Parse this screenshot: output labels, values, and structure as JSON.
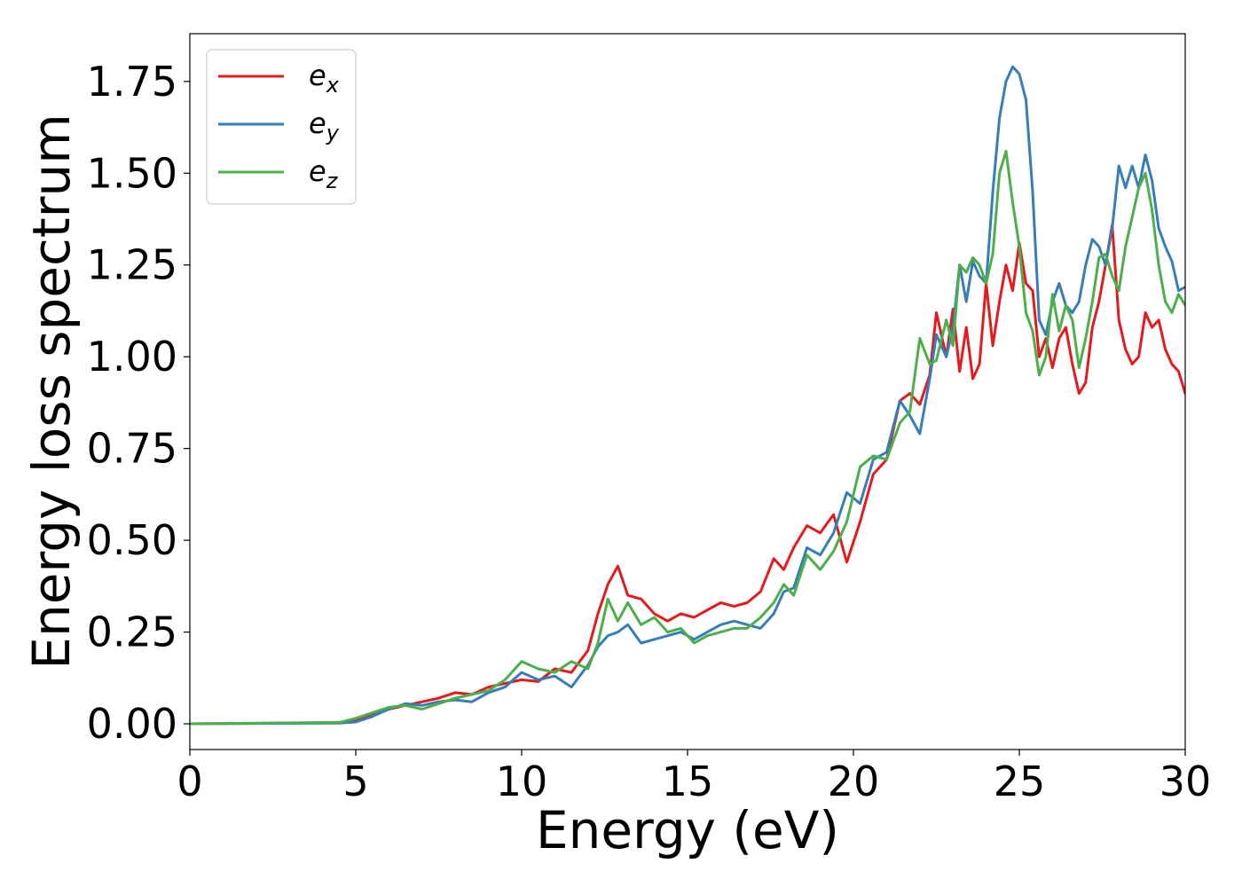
{
  "chart_data": {
    "type": "line",
    "title": "",
    "xlabel": "Energy (eV)",
    "ylabel": "Energy loss spectrum",
    "xlim": [
      0,
      30
    ],
    "ylim": [
      -0.07,
      1.88
    ],
    "xticks": [
      0,
      5,
      10,
      15,
      20,
      25,
      30
    ],
    "xtick_labels": [
      "0",
      "5",
      "10",
      "15",
      "20",
      "25",
      "30"
    ],
    "yticks": [
      0.0,
      0.25,
      0.5,
      0.75,
      1.0,
      1.25,
      1.5,
      1.75
    ],
    "ytick_labels": [
      "0.00",
      "0.25",
      "0.50",
      "0.75",
      "1.00",
      "1.25",
      "1.50",
      "1.75"
    ],
    "grid": false,
    "legend_position": "top-left",
    "series": [
      {
        "name": "e_x",
        "label_base": "e",
        "label_sub": "x",
        "color": "#e41a1c",
        "x": [
          0,
          4.5,
          5,
          5.5,
          6,
          6.5,
          7,
          7.5,
          8,
          8.5,
          9,
          9.5,
          10,
          10.5,
          11,
          11.5,
          12,
          12.3,
          12.6,
          12.9,
          13.2,
          13.6,
          14,
          14.4,
          14.8,
          15.2,
          15.6,
          16,
          16.4,
          16.8,
          17.2,
          17.6,
          17.9,
          18.2,
          18.6,
          19,
          19.4,
          19.8,
          20.2,
          20.6,
          21,
          21.4,
          21.7,
          22,
          22.3,
          22.5,
          22.8,
          23,
          23.2,
          23.4,
          23.6,
          23.8,
          24,
          24.2,
          24.4,
          24.6,
          24.8,
          25,
          25.2,
          25.4,
          25.6,
          25.8,
          26,
          26.2,
          26.4,
          26.6,
          26.8,
          27,
          27.2,
          27.4,
          27.6,
          27.8,
          28,
          28.2,
          28.4,
          28.6,
          28.8,
          29,
          29.2,
          29.4,
          29.6,
          29.8,
          30
        ],
        "y": [
          0,
          0.003,
          0.01,
          0.025,
          0.04,
          0.05,
          0.06,
          0.07,
          0.085,
          0.08,
          0.1,
          0.11,
          0.12,
          0.115,
          0.15,
          0.14,
          0.2,
          0.3,
          0.38,
          0.43,
          0.35,
          0.34,
          0.3,
          0.28,
          0.3,
          0.29,
          0.31,
          0.33,
          0.32,
          0.33,
          0.36,
          0.45,
          0.42,
          0.48,
          0.54,
          0.52,
          0.57,
          0.44,
          0.55,
          0.68,
          0.72,
          0.88,
          0.9,
          0.87,
          0.95,
          1.12,
          1.0,
          1.13,
          0.96,
          1.08,
          0.94,
          0.98,
          1.2,
          1.03,
          1.15,
          1.25,
          1.18,
          1.31,
          1.2,
          1.18,
          1.0,
          1.05,
          0.97,
          1.05,
          1.08,
          0.98,
          0.9,
          0.93,
          1.08,
          1.15,
          1.25,
          1.36,
          1.1,
          1.02,
          0.98,
          1.0,
          1.12,
          1.08,
          1.1,
          1.02,
          0.98,
          0.96,
          0.9
        ]
      },
      {
        "name": "e_y",
        "label_base": "e",
        "label_sub": "y",
        "color": "#377eb8",
        "x": [
          0,
          4.5,
          5,
          5.5,
          6,
          6.5,
          7,
          7.5,
          8,
          8.5,
          9,
          9.5,
          10,
          10.5,
          11,
          11.5,
          12,
          12.3,
          12.6,
          12.9,
          13.2,
          13.6,
          14,
          14.4,
          14.8,
          15.2,
          15.6,
          16,
          16.4,
          16.8,
          17.2,
          17.6,
          17.9,
          18.2,
          18.6,
          19,
          19.4,
          19.8,
          20.2,
          20.6,
          21,
          21.4,
          21.7,
          22,
          22.3,
          22.5,
          22.8,
          23,
          23.2,
          23.4,
          23.6,
          23.8,
          24,
          24.2,
          24.4,
          24.6,
          24.8,
          25,
          25.2,
          25.4,
          25.6,
          25.8,
          26,
          26.2,
          26.4,
          26.6,
          26.8,
          27,
          27.2,
          27.4,
          27.6,
          27.8,
          28,
          28.2,
          28.4,
          28.6,
          28.8,
          29,
          29.2,
          29.4,
          29.6,
          29.8,
          30
        ],
        "y": [
          0,
          0.002,
          0.005,
          0.02,
          0.04,
          0.055,
          0.05,
          0.06,
          0.065,
          0.06,
          0.085,
          0.1,
          0.14,
          0.12,
          0.13,
          0.1,
          0.16,
          0.21,
          0.24,
          0.25,
          0.27,
          0.22,
          0.23,
          0.24,
          0.25,
          0.23,
          0.25,
          0.27,
          0.28,
          0.27,
          0.26,
          0.3,
          0.36,
          0.37,
          0.48,
          0.46,
          0.52,
          0.63,
          0.6,
          0.72,
          0.74,
          0.88,
          0.84,
          0.79,
          0.94,
          1.06,
          1.0,
          1.08,
          1.25,
          1.15,
          1.26,
          1.22,
          1.2,
          1.45,
          1.65,
          1.75,
          1.79,
          1.77,
          1.7,
          1.45,
          1.1,
          1.06,
          1.15,
          1.2,
          1.14,
          1.12,
          1.15,
          1.25,
          1.32,
          1.3,
          1.25,
          1.35,
          1.52,
          1.46,
          1.52,
          1.46,
          1.55,
          1.48,
          1.35,
          1.3,
          1.26,
          1.18,
          1.19
        ]
      },
      {
        "name": "e_z",
        "label_base": "e",
        "label_sub": "z",
        "color": "#4daf4a",
        "x": [
          0,
          4.5,
          5,
          5.5,
          6,
          6.5,
          7,
          7.5,
          8,
          8.5,
          9,
          9.5,
          10,
          10.5,
          11,
          11.5,
          12,
          12.3,
          12.6,
          12.9,
          13.2,
          13.6,
          14,
          14.4,
          14.8,
          15.2,
          15.6,
          16,
          16.4,
          16.8,
          17.2,
          17.6,
          17.9,
          18.2,
          18.6,
          19,
          19.4,
          19.8,
          20.2,
          20.6,
          21,
          21.4,
          21.7,
          22,
          22.3,
          22.5,
          22.8,
          23,
          23.2,
          23.4,
          23.6,
          23.8,
          24,
          24.2,
          24.4,
          24.6,
          24.8,
          25,
          25.2,
          25.4,
          25.6,
          25.8,
          26,
          26.2,
          26.4,
          26.6,
          26.8,
          27,
          27.2,
          27.4,
          27.6,
          27.8,
          28,
          28.2,
          28.4,
          28.6,
          28.8,
          29,
          29.2,
          29.4,
          29.6,
          29.8,
          30
        ],
        "y": [
          0,
          0.004,
          0.015,
          0.03,
          0.045,
          0.05,
          0.04,
          0.055,
          0.07,
          0.08,
          0.09,
          0.12,
          0.17,
          0.15,
          0.14,
          0.17,
          0.15,
          0.22,
          0.34,
          0.28,
          0.33,
          0.27,
          0.29,
          0.25,
          0.26,
          0.22,
          0.24,
          0.25,
          0.26,
          0.26,
          0.29,
          0.33,
          0.38,
          0.35,
          0.46,
          0.42,
          0.47,
          0.55,
          0.7,
          0.73,
          0.72,
          0.82,
          0.85,
          1.05,
          0.98,
          0.99,
          1.1,
          1.03,
          1.25,
          1.23,
          1.27,
          1.25,
          1.2,
          1.28,
          1.5,
          1.56,
          1.42,
          1.3,
          1.12,
          1.07,
          0.95,
          1.0,
          1.17,
          1.07,
          1.14,
          1.1,
          0.97,
          1.05,
          1.15,
          1.27,
          1.28,
          1.22,
          1.18,
          1.3,
          1.38,
          1.46,
          1.5,
          1.4,
          1.25,
          1.15,
          1.12,
          1.17,
          1.14
        ]
      }
    ]
  }
}
